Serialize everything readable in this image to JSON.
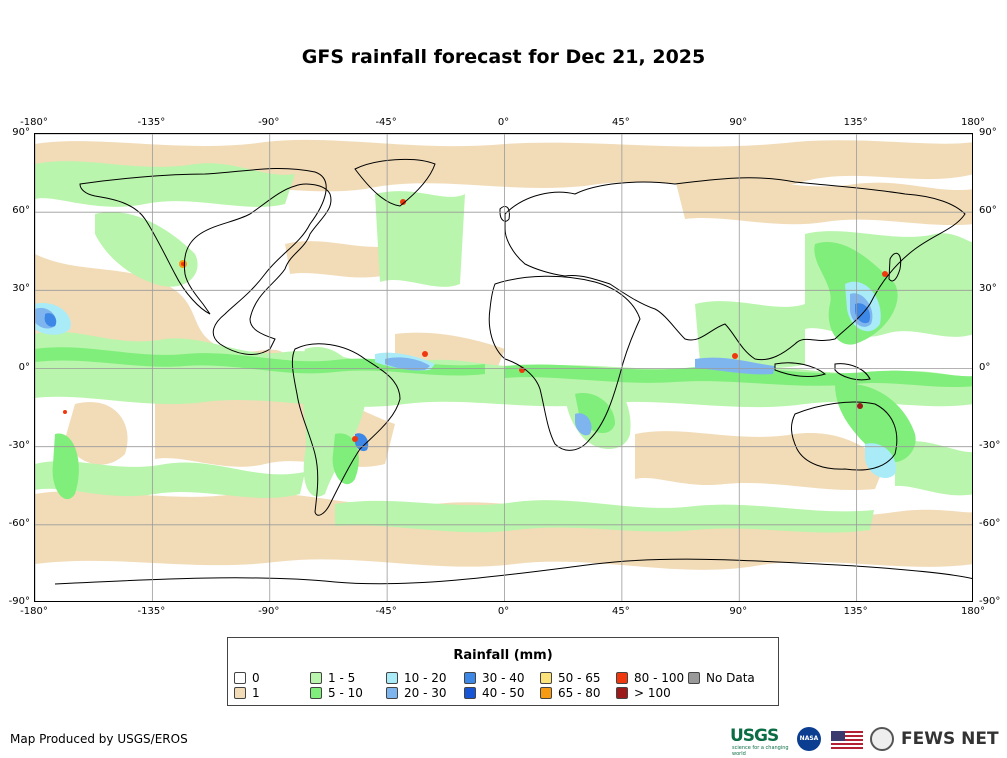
{
  "title": "GFS rainfall forecast for Dec 21, 2025",
  "map": {
    "longitude_ticks": [
      "-180°",
      "-135°",
      "-90°",
      "-45°",
      "0°",
      "45°",
      "90°",
      "135°",
      "180°"
    ],
    "latitude_ticks": [
      "90°",
      "60°",
      "30°",
      "0°",
      "-30°",
      "-60°",
      "-90°"
    ],
    "longitude_values": [
      -180,
      -135,
      -90,
      -45,
      0,
      45,
      90,
      135,
      180
    ],
    "latitude_values": [
      90,
      60,
      30,
      0,
      -30,
      -60,
      -90
    ]
  },
  "legend": {
    "title": "Rainfall (mm)",
    "items": [
      {
        "label": "0",
        "color": "#ffffff"
      },
      {
        "label": "1",
        "color": "#f2dcb8"
      },
      {
        "label": "1 - 5",
        "color": "#b9f5ac"
      },
      {
        "label": "5 - 10",
        "color": "#7fee7a"
      },
      {
        "label": "10 - 20",
        "color": "#a9ecf7"
      },
      {
        "label": "20 - 30",
        "color": "#7fb5ee"
      },
      {
        "label": "30 - 40",
        "color": "#3d87e6"
      },
      {
        "label": "40 - 50",
        "color": "#1555d6"
      },
      {
        "label": "50 - 65",
        "color": "#fbe27a"
      },
      {
        "label": "65 - 80",
        "color": "#f59a12"
      },
      {
        "label": "80 - 100",
        "color": "#f0380e"
      },
      {
        "label": "> 100",
        "color": "#9c1a1a"
      },
      {
        "label": "No Data",
        "color": "#999999"
      }
    ]
  },
  "footer": {
    "credit": "Map Produced by USGS/EROS",
    "usgs": "USGS",
    "usgs_tagline": "science for a changing world",
    "nasa": "NASA",
    "fews": "FEWS NET"
  }
}
